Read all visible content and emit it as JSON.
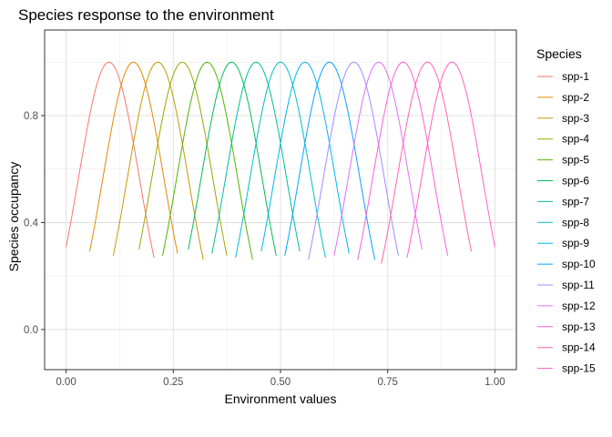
{
  "chart_data": {
    "type": "line",
    "title": "Species response to the environment",
    "xlabel": "Environment values",
    "ylabel": "Species occupancy",
    "xlim": [
      -0.05,
      1.05
    ],
    "ylim": [
      -0.15,
      1.12
    ],
    "xticks": [
      0.0,
      0.25,
      0.5,
      0.75,
      1.0
    ],
    "xtick_labels": [
      "0.00",
      "0.25",
      "0.50",
      "0.75",
      "1.00"
    ],
    "yticks": [
      0.0,
      0.4,
      0.8
    ],
    "ytick_labels": [
      "0.0",
      "0.4",
      "0.8"
    ],
    "grid": true,
    "legend_title": "Species",
    "legend_position": "right",
    "series": [
      {
        "name": "spp-1",
        "color": "#F8766D",
        "optimum": 0.1,
        "peak": 1.0,
        "range": [
          0.0,
          0.205
        ]
      },
      {
        "name": "spp-2",
        "color": "#E38900",
        "optimum": 0.157,
        "peak": 1.0,
        "range": [
          0.055,
          0.26
        ]
      },
      {
        "name": "spp-3",
        "color": "#C49A00",
        "optimum": 0.214,
        "peak": 1.0,
        "range": [
          0.11,
          0.32
        ]
      },
      {
        "name": "spp-4",
        "color": "#99A800",
        "optimum": 0.271,
        "peak": 1.0,
        "range": [
          0.17,
          0.375
        ]
      },
      {
        "name": "spp-5",
        "color": "#53B400",
        "optimum": 0.329,
        "peak": 1.0,
        "range": [
          0.225,
          0.435
        ]
      },
      {
        "name": "spp-6",
        "color": "#00BC56",
        "optimum": 0.386,
        "peak": 1.0,
        "range": [
          0.285,
          0.49
        ]
      },
      {
        "name": "spp-7",
        "color": "#00C094",
        "optimum": 0.443,
        "peak": 1.0,
        "range": [
          0.34,
          0.545
        ]
      },
      {
        "name": "spp-8",
        "color": "#00BFC4",
        "optimum": 0.5,
        "peak": 1.0,
        "range": [
          0.395,
          0.605
        ]
      },
      {
        "name": "spp-9",
        "color": "#00B6EB",
        "optimum": 0.557,
        "peak": 1.0,
        "range": [
          0.455,
          0.66
        ]
      },
      {
        "name": "spp-10",
        "color": "#06A4FF",
        "optimum": 0.614,
        "peak": 1.0,
        "range": [
          0.51,
          0.72
        ]
      },
      {
        "name": "spp-11",
        "color": "#A58AFF",
        "optimum": 0.671,
        "peak": 1.0,
        "range": [
          0.565,
          0.775
        ]
      },
      {
        "name": "spp-12",
        "color": "#DF70F8",
        "optimum": 0.729,
        "peak": 1.0,
        "range": [
          0.625,
          0.83
        ]
      },
      {
        "name": "spp-13",
        "color": "#FB61D7",
        "optimum": 0.786,
        "peak": 1.0,
        "range": [
          0.68,
          0.89
        ]
      },
      {
        "name": "spp-14",
        "color": "#FF66A8",
        "optimum": 0.843,
        "peak": 1.0,
        "range": [
          0.735,
          0.945
        ]
      },
      {
        "name": "spp-15",
        "color": "#FF61C3",
        "optimum": 0.9,
        "peak": 1.0,
        "range": [
          0.795,
          1.0
        ]
      }
    ]
  }
}
